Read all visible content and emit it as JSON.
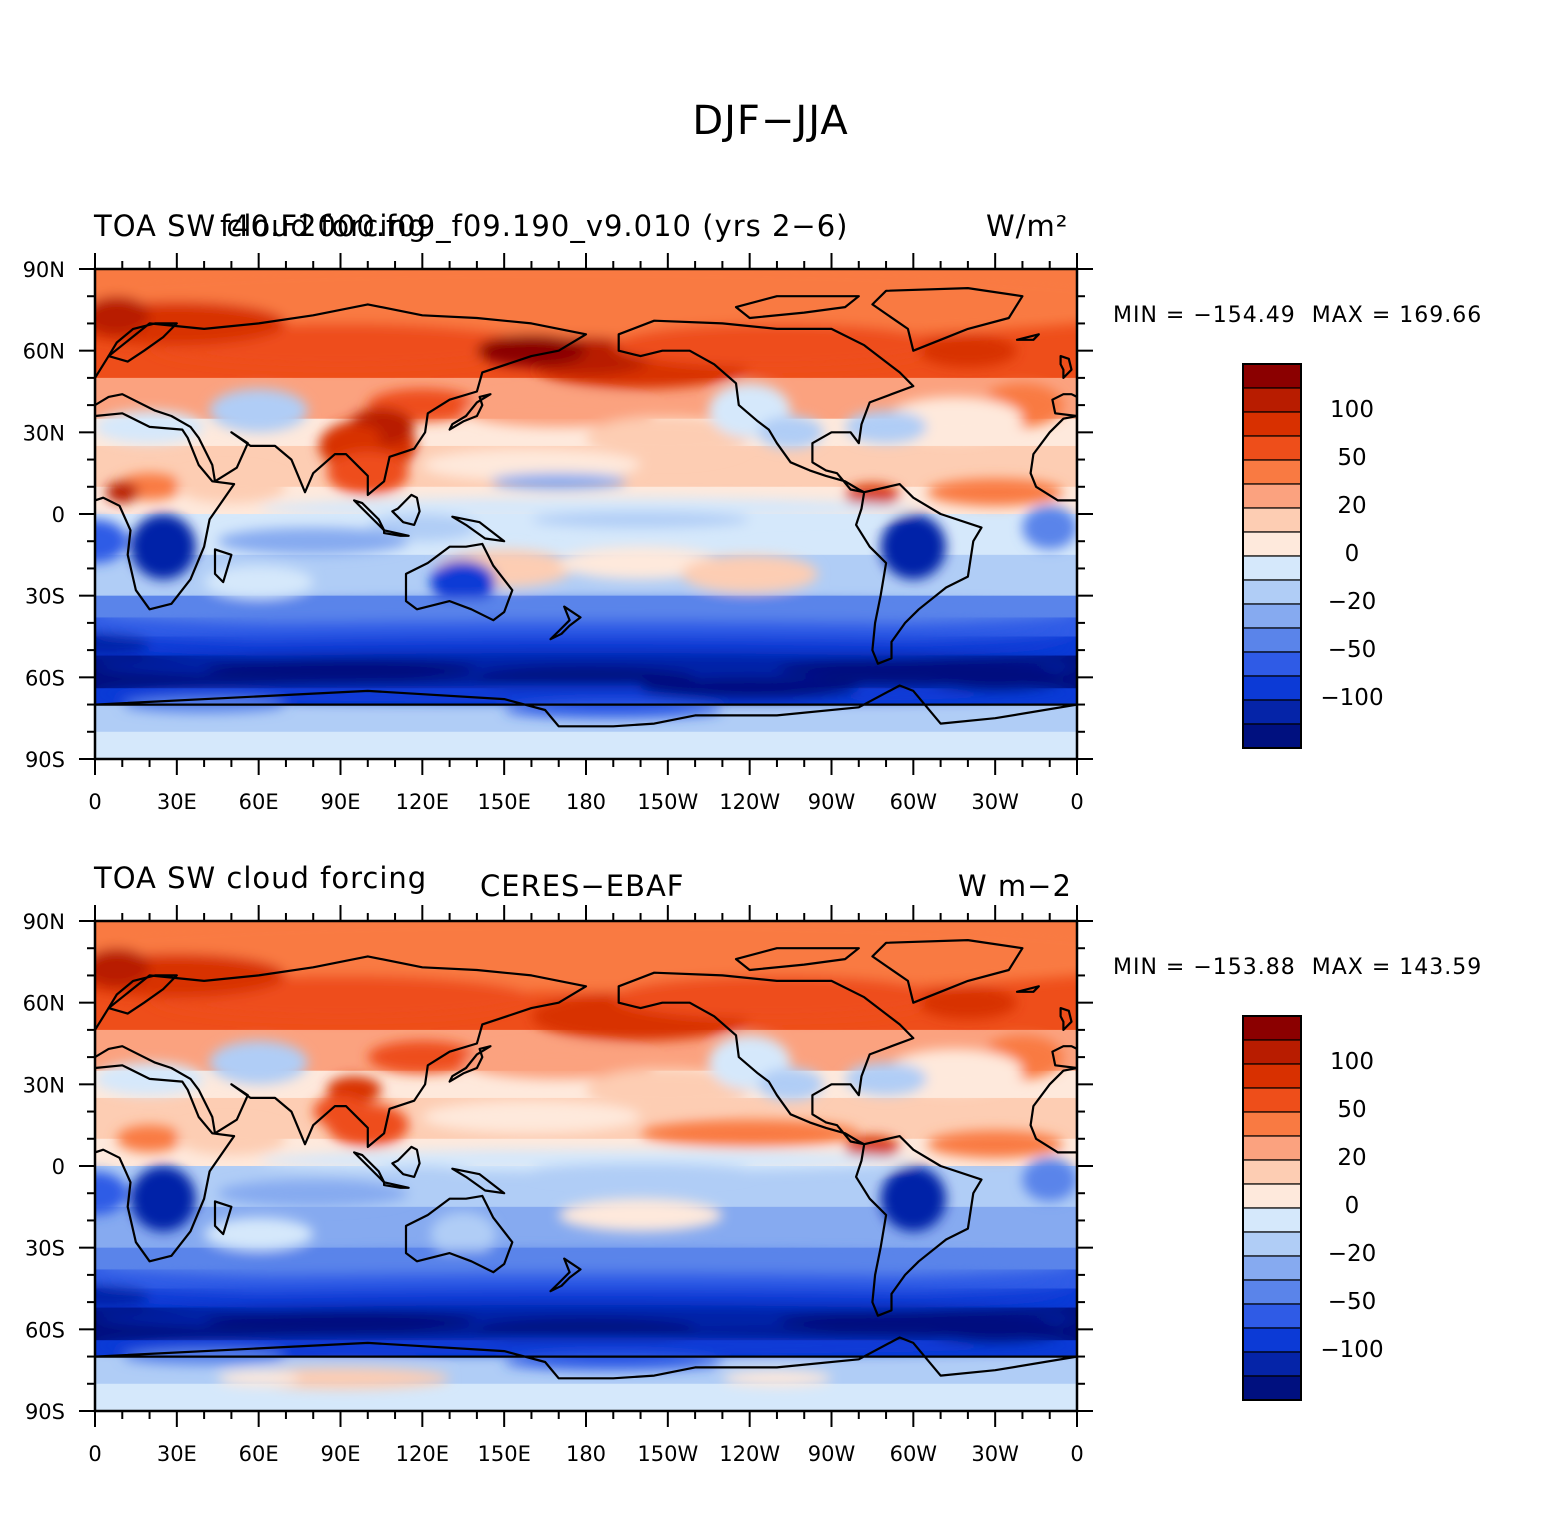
{
  "title": "DJF−JJA",
  "panels": [
    {
      "id": "model",
      "left_title": "TOA SW cloud forcing",
      "center_title": "f40.F2000.f09_f09.190_v9.010 (yrs 2−6)",
      "right_title": "W/m²",
      "min_label": "MIN = −154.49",
      "max_label": "MAX = 169.66"
    },
    {
      "id": "obs",
      "left_title": "TOA SW cloud forcing",
      "center_title": "CERES−EBAF",
      "right_title": "W m−2",
      "min_label": "MIN = −153.88",
      "max_label": "MAX = 143.59"
    }
  ],
  "axes": {
    "lon_labels": [
      "0",
      "30E",
      "60E",
      "90E",
      "120E",
      "150E",
      "180",
      "150W",
      "120W",
      "90W",
      "60W",
      "30W",
      "0"
    ],
    "lat_labels": [
      "90N",
      "60N",
      "30N",
      "0",
      "30S",
      "60S",
      "90S"
    ]
  },
  "colorbar": {
    "colors": [
      "#8b0000",
      "#b81c00",
      "#d83000",
      "#ee4e1a",
      "#f97a42",
      "#fba27f",
      "#fdcdb3",
      "#fee9dc",
      "#d5e8fb",
      "#b0cdf6",
      "#86aaf0",
      "#5a84ea",
      "#2f5be6",
      "#0c3ad6",
      "#0524a8",
      "#00107f"
    ],
    "labels": [
      "100",
      "50",
      "20",
      "0",
      "−20",
      "−50",
      "−100"
    ]
  }
}
